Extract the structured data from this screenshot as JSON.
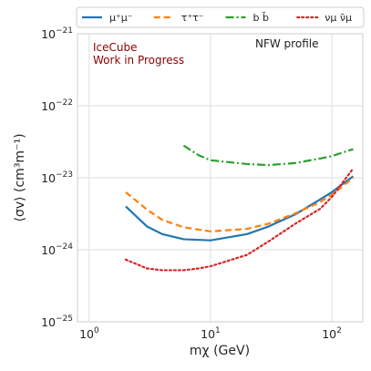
{
  "chart_data": {
    "type": "line",
    "title": "",
    "xlabel": "mχ (GeV)",
    "ylabel": "⟨σv⟩ (cm³m⁻¹)",
    "xscale": "log",
    "yscale": "log",
    "xlim": [
      0.8,
      180
    ],
    "ylim": [
      1e-25,
      1e-21
    ],
    "grid": true,
    "legend": {
      "placement": "top",
      "columns": 4
    },
    "x_ticks": [
      {
        "value": 1,
        "base": "10",
        "exp": "0"
      },
      {
        "value": 10,
        "base": "10",
        "exp": "1"
      },
      {
        "value": 100,
        "base": "10",
        "exp": "2"
      }
    ],
    "y_ticks": [
      {
        "value": 1e-25,
        "base": "10",
        "exp": "−25"
      },
      {
        "value": 1e-24,
        "base": "10",
        "exp": "−24"
      },
      {
        "value": 1e-23,
        "base": "10",
        "exp": "−23"
      },
      {
        "value": 1e-22,
        "base": "10",
        "exp": "−22"
      },
      {
        "value": 1e-21,
        "base": "10",
        "exp": "−21"
      }
    ],
    "annotations": [
      {
        "text": "IceCube",
        "color": "#8b0000"
      },
      {
        "text": "Work in Progress",
        "color": "#8b0000"
      },
      {
        "text": "NFW profile",
        "color": "#222222"
      }
    ],
    "series": [
      {
        "name": "μ⁺μ⁻",
        "color": "#1f77b4",
        "dash": "solid",
        "points": [
          [
            2,
            4e-24
          ],
          [
            3,
            2.1e-24
          ],
          [
            4,
            1.65e-24
          ],
          [
            6,
            1.4e-24
          ],
          [
            10,
            1.35e-24
          ],
          [
            20,
            1.65e-24
          ],
          [
            30,
            2.1e-24
          ],
          [
            50,
            3.1e-24
          ],
          [
            80,
            5e-24
          ],
          [
            100,
            6.3e-24
          ],
          [
            150,
            1.05e-23
          ]
        ]
      },
      {
        "name": "τ⁺τ⁻",
        "color": "#ff7f0e",
        "dash": "dashed",
        "points": [
          [
            2,
            6.3e-24
          ],
          [
            3,
            3.6e-24
          ],
          [
            4,
            2.6e-24
          ],
          [
            6,
            2.05e-24
          ],
          [
            10,
            1.8e-24
          ],
          [
            20,
            1.95e-24
          ],
          [
            30,
            2.3e-24
          ],
          [
            50,
            3.2e-24
          ],
          [
            80,
            4.6e-24
          ],
          [
            100,
            5.8e-24
          ],
          [
            150,
            1e-23
          ]
        ]
      },
      {
        "name": "b b̄",
        "color": "#2ca02c",
        "dash": "dashdot",
        "points": [
          [
            6,
            2.8e-23
          ],
          [
            8,
            2.05e-23
          ],
          [
            10,
            1.75e-23
          ],
          [
            20,
            1.55e-23
          ],
          [
            30,
            1.5e-23
          ],
          [
            50,
            1.6e-23
          ],
          [
            80,
            1.85e-23
          ],
          [
            100,
            2e-23
          ],
          [
            150,
            2.5e-23
          ]
        ]
      },
      {
        "name": "νμ ν̄μ",
        "color": "#d62728",
        "dash": "dotted",
        "points": [
          [
            2,
            7.3e-25
          ],
          [
            3,
            5.5e-25
          ],
          [
            4,
            5.2e-25
          ],
          [
            6,
            5.2e-25
          ],
          [
            8,
            5.5e-25
          ],
          [
            10,
            5.9e-25
          ],
          [
            20,
            8.5e-25
          ],
          [
            30,
            1.3e-24
          ],
          [
            50,
            2.3e-24
          ],
          [
            80,
            3.7e-24
          ],
          [
            100,
            5.4e-24
          ],
          [
            150,
            1.35e-23
          ]
        ]
      }
    ]
  }
}
